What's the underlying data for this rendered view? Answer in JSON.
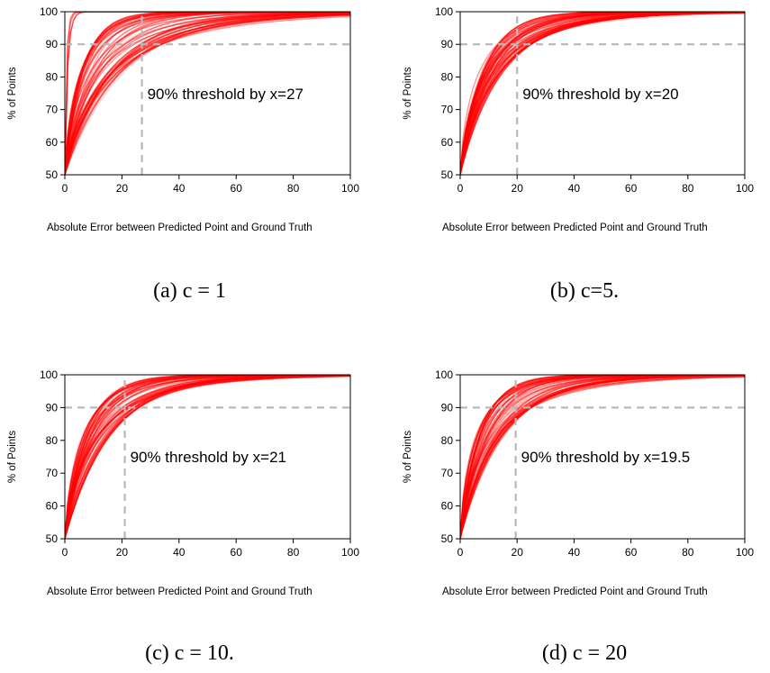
{
  "colors": {
    "curve": "#ff0000",
    "threshold_line": "#b8b8b8",
    "axis": "#000000"
  },
  "chart_data": [
    {
      "type": "line",
      "caption": "(a) c = 1",
      "xlabel": "Absolute Error between Predicted Point and Ground Truth",
      "ylabel": "% of Points",
      "xlim": [
        0,
        100
      ],
      "ylim": [
        50,
        100
      ],
      "xticks": [
        0,
        20,
        40,
        60,
        80,
        100
      ],
      "yticks": [
        50,
        60,
        70,
        80,
        90,
        100
      ],
      "threshold": {
        "x": 27,
        "y": 90,
        "label": "90% threshold by x=27"
      },
      "curve_family": {
        "count": 60,
        "x_at_90_range": [
          10,
          34
        ],
        "extra_fast_curves": 4
      }
    },
    {
      "type": "line",
      "caption": "(b) c=5.",
      "xlabel": "Absolute Error between Predicted Point and Ground Truth",
      "ylabel": "% of Points",
      "xlim": [
        0,
        100
      ],
      "ylim": [
        50,
        100
      ],
      "xticks": [
        0,
        20,
        40,
        60,
        80,
        100
      ],
      "yticks": [
        50,
        60,
        70,
        80,
        90,
        100
      ],
      "threshold": {
        "x": 20,
        "y": 90,
        "label": "90% threshold by x=20"
      },
      "curve_family": {
        "count": 60,
        "x_at_90_range": [
          13,
          25
        ],
        "extra_fast_curves": 0
      }
    },
    {
      "type": "line",
      "caption": "(c) c = 10.",
      "xlabel": "Absolute Error between Predicted Point and Ground Truth",
      "ylabel": "% of Points",
      "xlim": [
        0,
        100
      ],
      "ylim": [
        50,
        100
      ],
      "xticks": [
        0,
        20,
        40,
        60,
        80,
        100
      ],
      "yticks": [
        50,
        60,
        70,
        80,
        90,
        100
      ],
      "threshold": {
        "x": 21,
        "y": 90,
        "label": "90% threshold by x=21"
      },
      "curve_family": {
        "count": 60,
        "x_at_90_range": [
          12,
          26
        ],
        "extra_fast_curves": 0
      }
    },
    {
      "type": "line",
      "caption": "(d) c = 20",
      "xlabel": "Absolute Error between Predicted Point and Ground Truth",
      "ylabel": "% of Points",
      "xlim": [
        0,
        100
      ],
      "ylim": [
        50,
        100
      ],
      "xticks": [
        0,
        20,
        40,
        60,
        80,
        100
      ],
      "yticks": [
        50,
        60,
        70,
        80,
        90,
        100
      ],
      "threshold": {
        "x": 19.5,
        "y": 90,
        "label": "90% threshold by x=19.5"
      },
      "curve_family": {
        "count": 60,
        "x_at_90_range": [
          11,
          25
        ],
        "extra_fast_curves": 0
      }
    }
  ]
}
